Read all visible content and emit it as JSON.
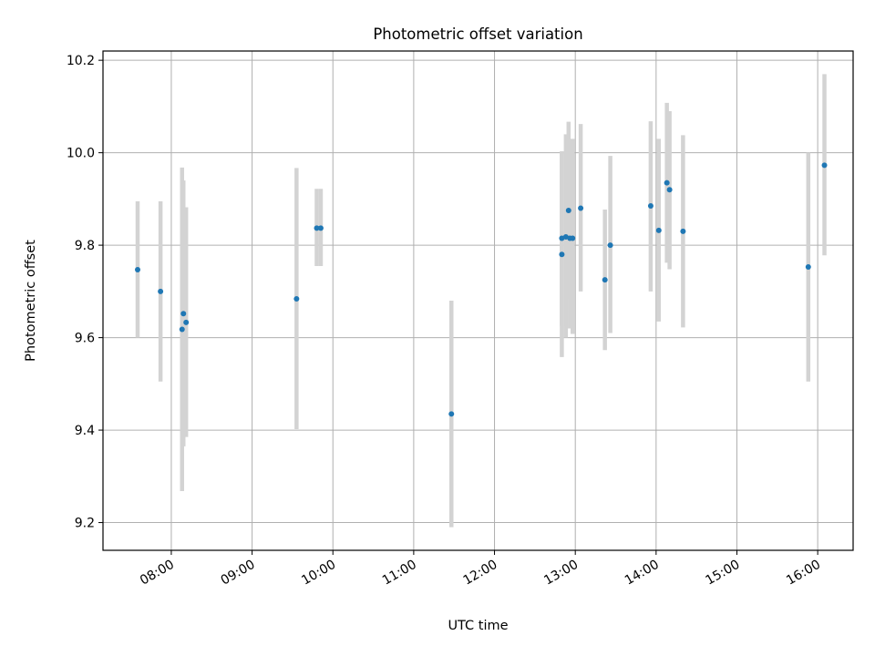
{
  "chart_data": {
    "type": "scatter",
    "title": "Photometric offset variation",
    "xlabel": "UTC time",
    "ylabel": "Photometric offset",
    "xlim": [
      "07:35",
      "16:52"
    ],
    "ylim": [
      9.14,
      10.22
    ],
    "grid": true,
    "xticks": [
      "08:00",
      "09:00",
      "10:00",
      "11:00",
      "12:00",
      "13:00",
      "14:00",
      "15:00",
      "16:00"
    ],
    "yticks": [
      "9.2",
      "9.4",
      "9.6",
      "9.8",
      "10.0",
      "10.2"
    ],
    "colors": {
      "point": "#1f77b4",
      "errorbar": "#d3d3d3",
      "grid": "#b0b0b0"
    },
    "points": [
      {
        "x": "07:35",
        "y": 9.747,
        "ylo": 9.6,
        "yhi": 9.895
      },
      {
        "x": "07:52",
        "y": 9.7,
        "ylo": 9.505,
        "yhi": 9.895
      },
      {
        "x": "08:08",
        "y": 9.618,
        "ylo": 9.268,
        "yhi": 9.968
      },
      {
        "x": "08:09",
        "y": 9.652,
        "ylo": 9.365,
        "yhi": 9.94
      },
      {
        "x": "08:11",
        "y": 9.633,
        "ylo": 9.385,
        "yhi": 9.882
      },
      {
        "x": "09:33",
        "y": 9.684,
        "ylo": 9.402,
        "yhi": 9.967
      },
      {
        "x": "09:48",
        "y": 9.837,
        "ylo": 9.755,
        "yhi": 9.922
      },
      {
        "x": "09:51",
        "y": 9.837,
        "ylo": 9.755,
        "yhi": 9.922
      },
      {
        "x": "11:28",
        "y": 9.435,
        "ylo": 9.19,
        "yhi": 9.68
      },
      {
        "x": "12:50",
        "y": 9.815,
        "ylo": 9.625,
        "yhi": 10.003
      },
      {
        "x": "12:50",
        "y": 9.78,
        "ylo": 9.558,
        "yhi": 10.003
      },
      {
        "x": "12:53",
        "y": 9.818,
        "ylo": 9.6,
        "yhi": 10.04
      },
      {
        "x": "12:55",
        "y": 9.875,
        "ylo": 9.683,
        "yhi": 10.067
      },
      {
        "x": "12:56",
        "y": 9.815,
        "ylo": 9.62,
        "yhi": 10.01
      },
      {
        "x": "12:58",
        "y": 9.815,
        "ylo": 9.608,
        "yhi": 10.03
      },
      {
        "x": "13:04",
        "y": 9.88,
        "ylo": 9.7,
        "yhi": 10.062
      },
      {
        "x": "13:22",
        "y": 9.725,
        "ylo": 9.573,
        "yhi": 9.877
      },
      {
        "x": "13:26",
        "y": 9.8,
        "ylo": 9.61,
        "yhi": 9.993
      },
      {
        "x": "13:56",
        "y": 9.885,
        "ylo": 9.7,
        "yhi": 10.068
      },
      {
        "x": "14:02",
        "y": 9.832,
        "ylo": 9.635,
        "yhi": 10.03
      },
      {
        "x": "14:08",
        "y": 9.935,
        "ylo": 9.762,
        "yhi": 10.108
      },
      {
        "x": "14:10",
        "y": 9.92,
        "ylo": 9.748,
        "yhi": 10.09
      },
      {
        "x": "14:20",
        "y": 9.83,
        "ylo": 9.622,
        "yhi": 10.038
      },
      {
        "x": "15:53",
        "y": 9.753,
        "ylo": 9.505,
        "yhi": 10.0
      },
      {
        "x": "16:05",
        "y": 9.973,
        "ylo": 9.778,
        "yhi": 10.17
      }
    ]
  }
}
